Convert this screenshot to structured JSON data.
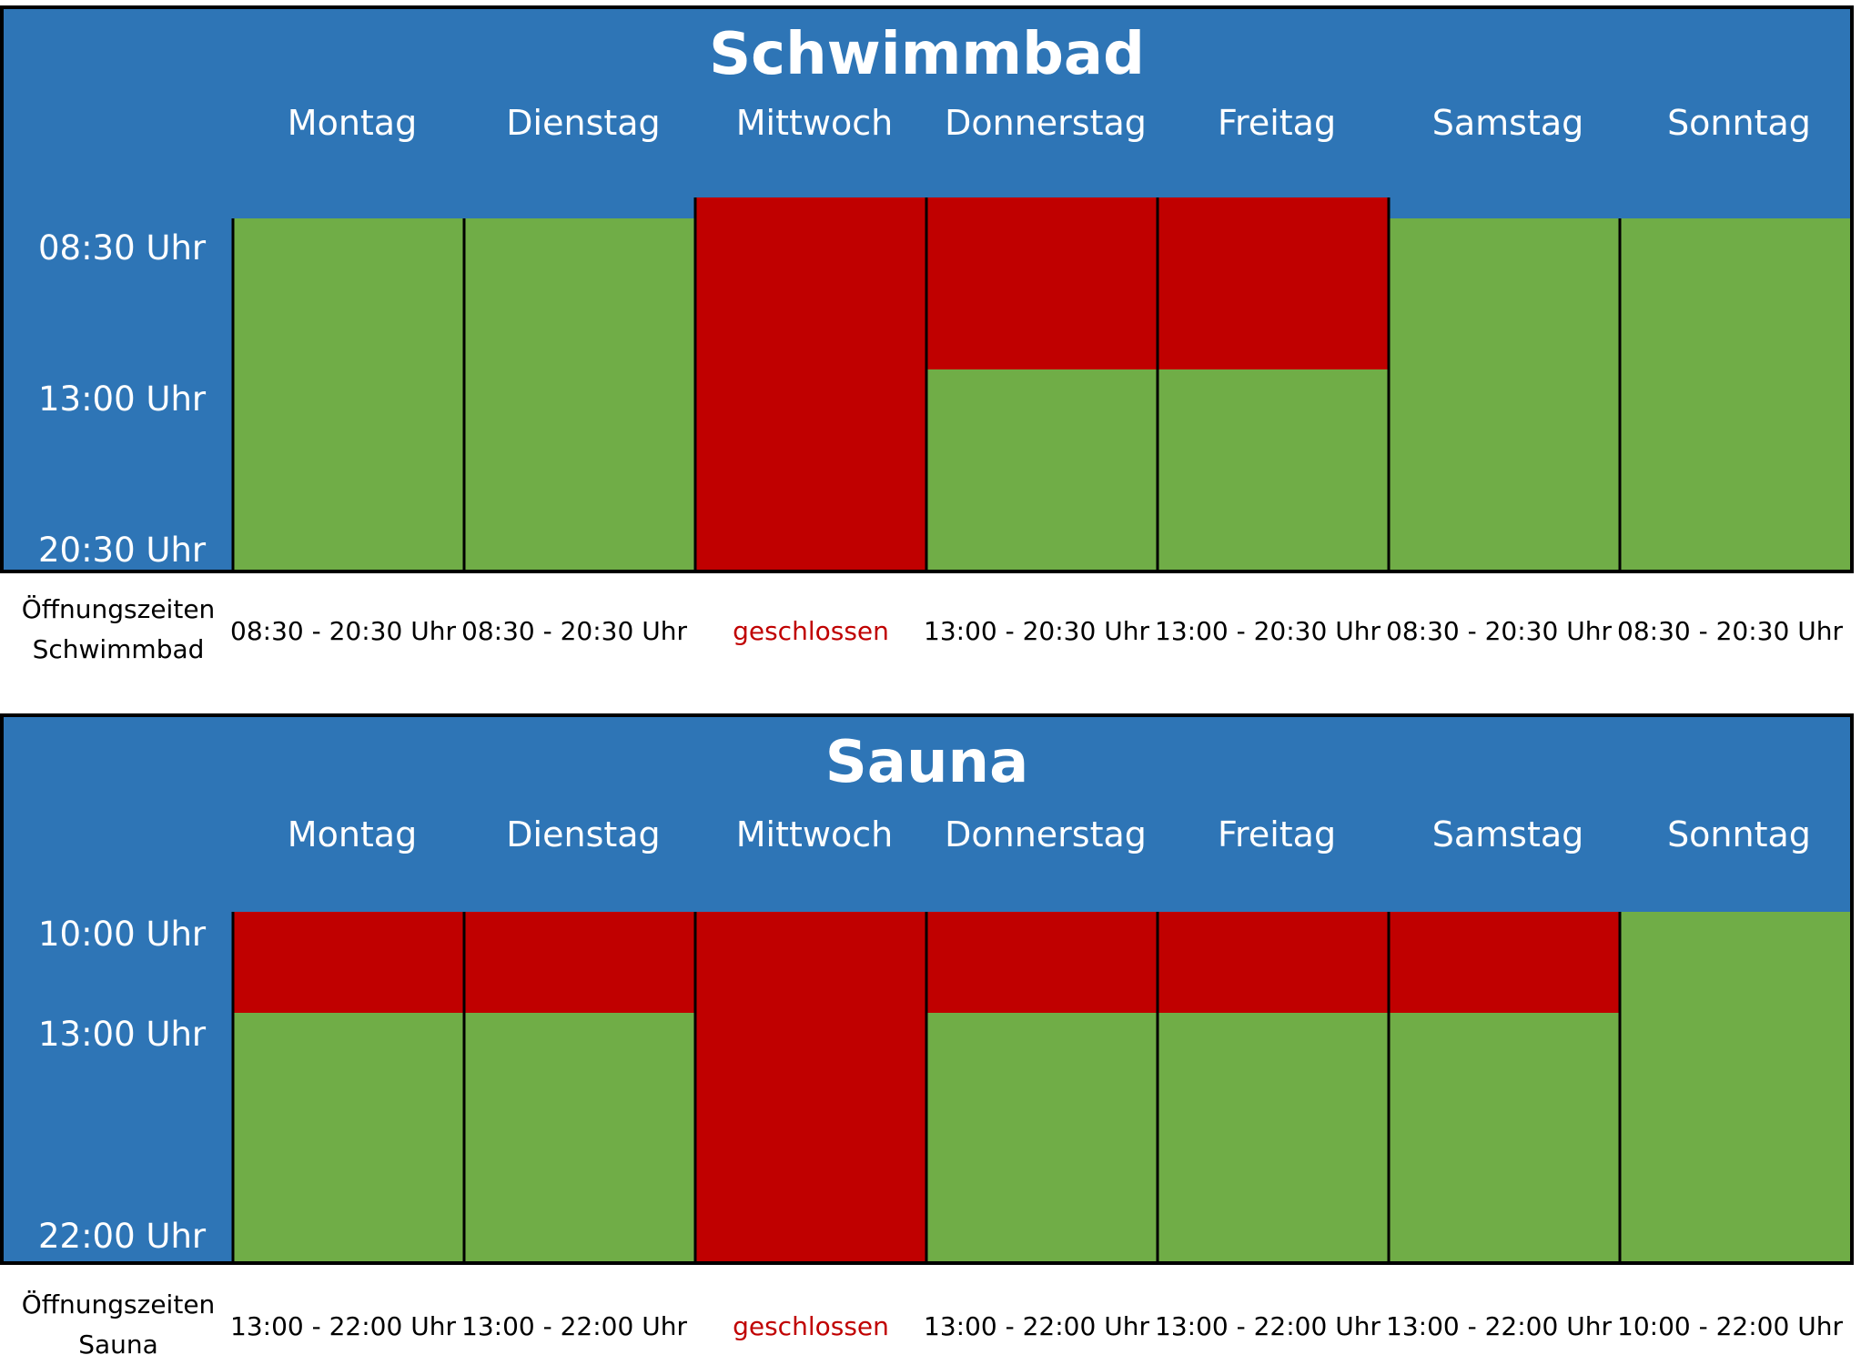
{
  "colors": {
    "header_blue": "#2e75b6",
    "open_green": "#70ad47",
    "closed_red": "#c00000",
    "closed_text": "#c00000"
  },
  "chart_data": [
    {
      "type": "table",
      "title": "Schwimmbad",
      "days": [
        "Montag",
        "Dienstag",
        "Mittwoch",
        "Donnerstag",
        "Freitag",
        "Samstag",
        "Sonntag"
      ],
      "axis": {
        "range_hours": [
          8.5,
          20.5
        ],
        "ticks": [
          {
            "hour": 8.5,
            "label": "08:30 Uhr"
          },
          {
            "hour": 13,
            "label": "13:00 Uhr"
          },
          {
            "hour": 20.5,
            "label": "20:30 Uhr"
          }
        ]
      },
      "open_hours": [
        [
          8.5,
          20.5
        ],
        [
          8.5,
          20.5
        ],
        null,
        [
          13,
          20.5
        ],
        [
          13,
          20.5
        ],
        [
          8.5,
          20.5
        ],
        [
          8.5,
          20.5
        ]
      ],
      "caption_lines": [
        "Öffnungszeiten",
        "Schwimmbad"
      ],
      "hours_text": [
        "08:30 - 20:30 Uhr",
        "08:30 - 20:30 Uhr",
        "geschlossen",
        "13:00 - 20:30 Uhr",
        "13:00 - 20:30 Uhr",
        "08:30 - 20:30 Uhr",
        "08:30 - 20:30 Uhr"
      ]
    },
    {
      "type": "table",
      "title": "Sauna",
      "days": [
        "Montag",
        "Dienstag",
        "Mittwoch",
        "Donnerstag",
        "Freitag",
        "Samstag",
        "Sonntag"
      ],
      "axis": {
        "range_hours": [
          10,
          22
        ],
        "ticks": [
          {
            "hour": 10,
            "label": "10:00 Uhr"
          },
          {
            "hour": 13,
            "label": "13:00 Uhr"
          },
          {
            "hour": 22,
            "label": "22:00 Uhr"
          }
        ]
      },
      "open_hours": [
        [
          13,
          22
        ],
        [
          13,
          22
        ],
        null,
        [
          13,
          22
        ],
        [
          13,
          22
        ],
        [
          13,
          22
        ],
        [
          10,
          22
        ]
      ],
      "caption_lines": [
        "Öffnungszeiten",
        "Sauna"
      ],
      "hours_text": [
        "13:00 - 22:00 Uhr",
        "13:00 - 22:00 Uhr",
        "geschlossen",
        "13:00 - 22:00 Uhr",
        "13:00 - 22:00 Uhr",
        "13:00 - 22:00 Uhr",
        "10:00 - 22:00 Uhr"
      ]
    }
  ]
}
